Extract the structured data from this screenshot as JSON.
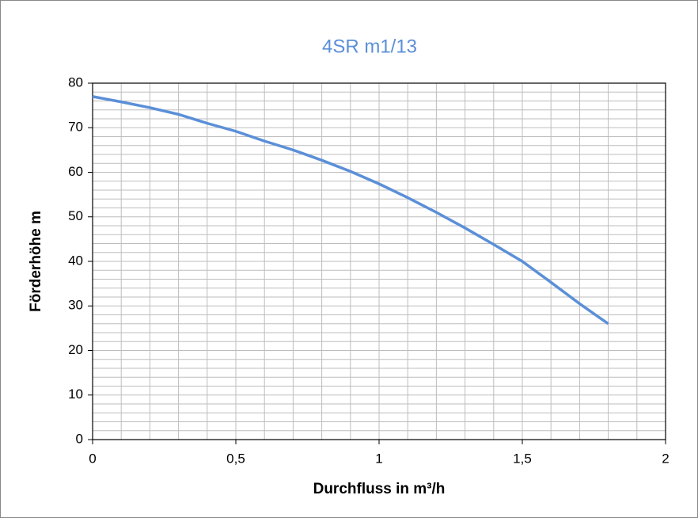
{
  "chart_data": {
    "type": "line",
    "title": "4SR m1/13",
    "x_label": "Durchfluss  in m³/h",
    "y_label": "Förderhöhe  m",
    "x": [
      0,
      0.1,
      0.2,
      0.3,
      0.4,
      0.5,
      0.6,
      0.7,
      0.8,
      0.9,
      1.0,
      1.1,
      1.2,
      1.3,
      1.4,
      1.5,
      1.6,
      1.7,
      1.8
    ],
    "series": [
      {
        "name": "4SR m1/13",
        "color": "#5b8fd8",
        "values": [
          77,
          75.8,
          74.5,
          73,
          71,
          69.2,
          67,
          65,
          62.7,
          60.2,
          57.4,
          54.3,
          51,
          47.5,
          43.8,
          40,
          35.3,
          30.5,
          26
        ]
      }
    ],
    "xlim": [
      0,
      2
    ],
    "ylim": [
      0,
      80
    ],
    "xticks": [
      0,
      {
        "value": 0.5,
        "label": "0,5"
      },
      1,
      {
        "value": 1.5,
        "label": "1,5"
      },
      2
    ],
    "yticks": [
      0,
      10,
      20,
      30,
      40,
      50,
      60,
      70,
      80
    ],
    "xgrid": [
      0.1,
      0.2,
      0.3,
      0.4,
      0.5,
      0.6,
      0.7,
      0.8,
      0.9,
      1.0,
      1.1,
      1.2,
      1.3,
      1.4,
      1.5,
      1.6,
      1.7,
      1.8,
      1.9
    ],
    "ygrid": [
      2,
      4,
      6,
      8,
      10,
      12,
      14,
      16,
      18,
      20,
      22,
      24,
      26,
      28,
      30,
      32,
      34,
      36,
      38,
      40,
      42,
      44,
      46,
      48,
      50,
      52,
      54,
      56,
      58,
      60,
      62,
      64,
      66,
      68,
      70,
      72,
      74,
      76,
      78
    ],
    "grid": true
  }
}
